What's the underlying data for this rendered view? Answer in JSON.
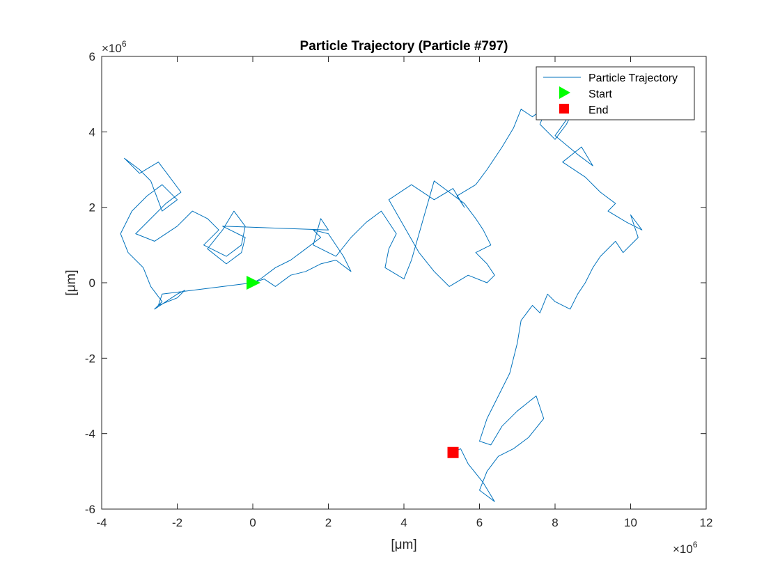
{
  "chart_data": {
    "type": "line",
    "title": "Particle Trajectory (Particle #797)",
    "xlabel": "[μm]",
    "ylabel": "[μm]",
    "x_exponent_label": "×10",
    "y_exponent_label": "×10",
    "exponent": "6",
    "xlim": [
      -4000000,
      12000000
    ],
    "ylim": [
      -6000000,
      6000000
    ],
    "xticks": [
      -4000000,
      -2000000,
      0,
      2000000,
      4000000,
      6000000,
      8000000,
      10000000,
      12000000
    ],
    "yticks": [
      -6000000,
      -4000000,
      -2000000,
      0,
      2000000,
      4000000,
      6000000
    ],
    "xtick_labels": [
      "-4",
      "-2",
      "0",
      "2",
      "4",
      "6",
      "8",
      "10",
      "12"
    ],
    "ytick_labels": [
      "-6",
      "-4",
      "-2",
      "0",
      "2",
      "4",
      "6"
    ],
    "grid": false,
    "legend_position": "top-right",
    "series": [
      {
        "name": "Particle Trajectory",
        "color": "#0072BD",
        "x": [
          0,
          300000,
          600000,
          1000000,
          1400000,
          1800000,
          2200000,
          2600000,
          2400000,
          2000000,
          1600000,
          1800000,
          1400000,
          1000000,
          600000,
          200000,
          0,
          -2400000,
          -2500000,
          -2000000,
          -1800000,
          -2000000,
          -2600000,
          -2400000,
          -2700000,
          -2900000,
          -3300000,
          -3500000,
          -3200000,
          -2800000,
          -2400000,
          -2000000,
          -2400000,
          -2700000,
          -3000000,
          -3400000,
          -3000000,
          -2500000,
          -2200000,
          -1900000,
          -2300000,
          -2700000,
          -3100000,
          -2600000,
          -2000000,
          -1600000,
          -1200000,
          -900000,
          -1300000,
          -700000,
          -300000,
          -200000,
          -500000,
          -800000,
          -1200000,
          -700000,
          -300000,
          -200000,
          -800000,
          2000000,
          1800000,
          1600000,
          2200000,
          2600000,
          3000000,
          3400000,
          3800000,
          3600000,
          3500000,
          4000000,
          4200000,
          4400000,
          4600000,
          4800000,
          5200000,
          5600000,
          5900000,
          6100000,
          6300000,
          5900000,
          6200000,
          6400000,
          6200000,
          5700000,
          5200000,
          4800000,
          4400000,
          4000000,
          3600000,
          4200000,
          4800000,
          5300000,
          5600000,
          5400000,
          5900000,
          6200000,
          6600000,
          6900000,
          7100000,
          7400000,
          7800000,
          7600000,
          8000000,
          8300000,
          8500000,
          8000000,
          8600000,
          9000000,
          8700000,
          8200000,
          8800000,
          9200000,
          9600000,
          9400000,
          9900000,
          10300000,
          10000000,
          10200000,
          9800000,
          9600000,
          9200000,
          9000000,
          8800000,
          8600000,
          8400000,
          8000000,
          7800000,
          7600000,
          7400000,
          7100000,
          7000000,
          6800000,
          6500000,
          6200000,
          6000000,
          6300000,
          6600000,
          7000000,
          7500000,
          7700000,
          7300000,
          6900000,
          6500000,
          6200000,
          6000000,
          6400000,
          6100000,
          5700000,
          5500000,
          5300000
        ],
        "y": [
          0,
          100000,
          -100000,
          200000,
          300000,
          500000,
          600000,
          300000,
          700000,
          1300000,
          1400000,
          1200000,
          900000,
          600000,
          400000,
          100000,
          0,
          -300000,
          -600000,
          -400000,
          -200000,
          -300000,
          -700000,
          -500000,
          -100000,
          400000,
          800000,
          1300000,
          1900000,
          2300000,
          2600000,
          2200000,
          1900000,
          2700000,
          3000000,
          3300000,
          2900000,
          3200000,
          2800000,
          2400000,
          2100000,
          1700000,
          1300000,
          1100000,
          1500000,
          1900000,
          1700000,
          1400000,
          1000000,
          700000,
          1000000,
          1500000,
          1900000,
          1400000,
          900000,
          500000,
          800000,
          1200000,
          1500000,
          1400000,
          1700000,
          1000000,
          700000,
          1200000,
          1600000,
          1900000,
          1300000,
          900000,
          400000,
          100000,
          600000,
          1300000,
          2000000,
          2700000,
          2400000,
          2100000,
          1700000,
          1400000,
          1000000,
          800000,
          500000,
          200000,
          0,
          200000,
          -100000,
          300000,
          800000,
          1500000,
          2200000,
          2600000,
          2200000,
          2500000,
          2000000,
          2300000,
          2600000,
          3000000,
          3600000,
          4100000,
          4600000,
          4400000,
          4700000,
          4200000,
          3800000,
          4200000,
          4600000,
          3900000,
          3400000,
          3100000,
          3600000,
          3200000,
          2800000,
          2400000,
          2100000,
          1900000,
          1600000,
          1400000,
          1800000,
          1200000,
          800000,
          1100000,
          700000,
          400000,
          0,
          -300000,
          -700000,
          -500000,
          -300000,
          -800000,
          -600000,
          -1000000,
          -1600000,
          -2400000,
          -3000000,
          -3600000,
          -4200000,
          -4300000,
          -3800000,
          -3400000,
          -3000000,
          -3600000,
          -4100000,
          -4400000,
          -4600000,
          -5000000,
          -5500000,
          -5800000,
          -5300000,
          -4800000,
          -4400000,
          -4500000
        ]
      },
      {
        "name": "Start",
        "color": "#00FF00",
        "marker": "triangle-right",
        "x": [
          0
        ],
        "y": [
          0
        ]
      },
      {
        "name": "End",
        "color": "#FF0000",
        "marker": "square",
        "x": [
          5300000
        ],
        "y": [
          -4500000
        ]
      }
    ]
  }
}
